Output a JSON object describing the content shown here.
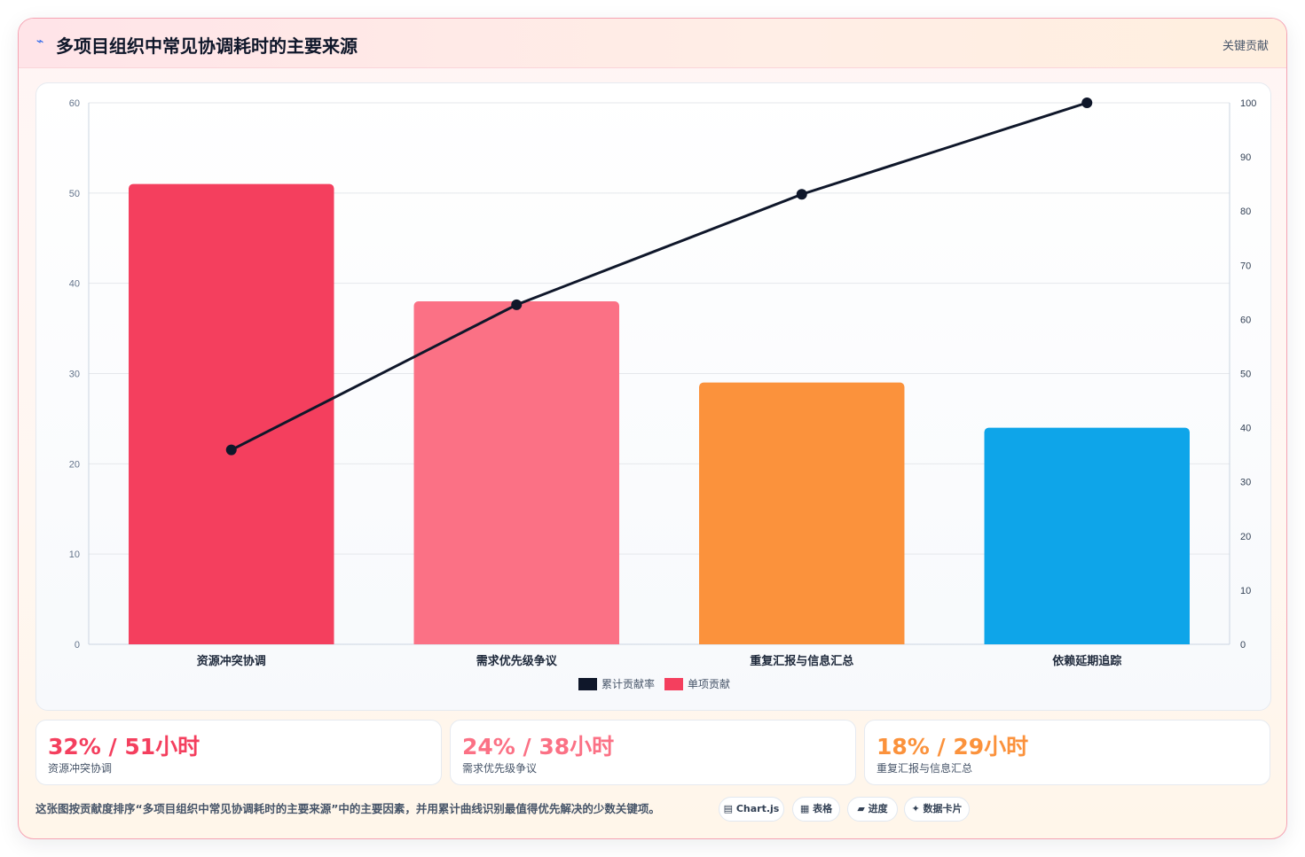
{
  "header": {
    "icon": "⌁",
    "title": "多项目组织中常见协调耗时的主要来源",
    "tag": "关键贡献"
  },
  "chart_data": {
    "type": "bar",
    "categories": [
      "资源冲突协调",
      "需求优先级争议",
      "重复汇报与信息汇总",
      "依赖延期追踪"
    ],
    "series": [
      {
        "name": "单项贡献",
        "type": "bar",
        "axis": "left",
        "values": [
          51,
          38,
          29,
          24
        ]
      },
      {
        "name": "累计贡献率",
        "type": "line",
        "axis": "right",
        "values": [
          35.9,
          62.7,
          83.1,
          100
        ]
      }
    ],
    "bar_colors": [
      "#f43f5e",
      "#fb7185",
      "#fb923c",
      "#0ea5e9"
    ],
    "line_color": "#0f172a",
    "y_left": {
      "min": 0,
      "max": 60,
      "ticks": [
        0,
        10,
        20,
        30,
        40,
        50,
        60
      ]
    },
    "y_right": {
      "min": 0,
      "max": 100,
      "ticks": [
        0,
        10,
        20,
        30,
        40,
        50,
        60,
        70,
        80,
        90,
        100
      ]
    },
    "legend": {
      "placement": "bottom",
      "items": [
        {
          "label": "累计贡献率",
          "color": "#0f172a"
        },
        {
          "label": "单项贡献",
          "color": "#f43f5e"
        }
      ]
    },
    "grid": true
  },
  "stats": [
    {
      "value": "32% / 51小时",
      "label": "资源冲突协调",
      "color": "#f43f5e"
    },
    {
      "value": "24% / 38小时",
      "label": "需求优先级争议",
      "color": "#fb7185"
    },
    {
      "value": "18% / 29小时",
      "label": "重复汇报与信息汇总",
      "color": "#fb923c"
    }
  ],
  "footer": {
    "note": "这张图按贡献度排序“多项目组织中常见协调耗时的主要来源”中的主要因素，并用累计曲线识别最值得优先解决的少数关键项。",
    "chips": [
      "▤ Chart.js",
      "▦ 表格",
      "▰ 进度",
      "✦ 数据卡片"
    ]
  }
}
